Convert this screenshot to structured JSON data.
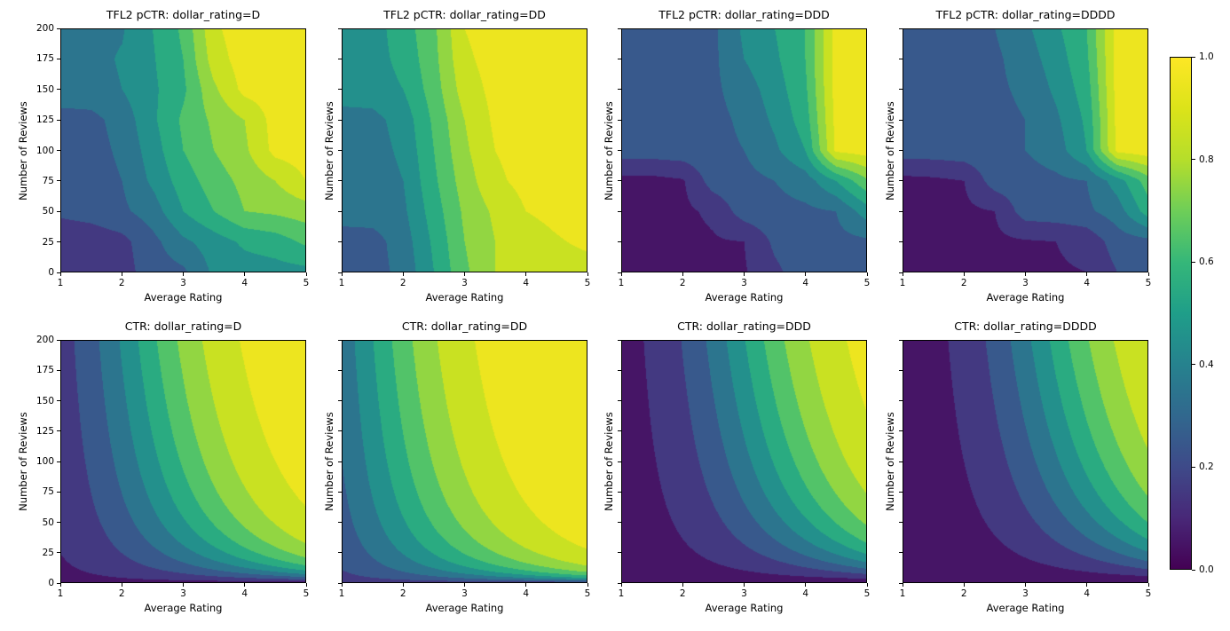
{
  "figure": {
    "background": "#ffffff",
    "description": "2x4 grid of filled contour plots comparing TFL2 lattice-model predicted CTR (top row) with true CTR (bottom row) for four dollar_rating categories, shared viridis colorbar 0-1"
  },
  "axes": {
    "x_label": "Average Rating",
    "y_label": "Number of Reviews",
    "x_ticks": [
      1,
      2,
      3,
      4,
      5
    ],
    "y_ticks": [
      0,
      25,
      50,
      75,
      100,
      125,
      150,
      175,
      200
    ],
    "x_range": [
      1,
      5
    ],
    "y_range": [
      0,
      200
    ],
    "grid": false
  },
  "colorbar": {
    "min": 0.0,
    "max": 1.0,
    "tick_labels": [
      "0.0",
      "0.2",
      "0.4",
      "0.6",
      "0.8",
      "1.0"
    ],
    "colormap": "viridis"
  },
  "colors": {
    "viridis_anchors": [
      "#440154",
      "#482878",
      "#3e4a89",
      "#31688e",
      "#26828e",
      "#1f9e89",
      "#35b779",
      "#6ece58",
      "#b5de2b",
      "#dce319",
      "#fde725"
    ],
    "spine": "#000000",
    "text": "#000000"
  },
  "chart_data": [
    {
      "type": "heatmap",
      "subtype": "filled-contour",
      "title": "TFL2 pCTR: dollar_rating=D",
      "row": 0,
      "col": 0,
      "x": [
        1,
        1.5,
        2,
        2.5,
        3,
        3.5,
        4,
        4.5,
        5
      ],
      "y": [
        0,
        25,
        50,
        75,
        100,
        125,
        150,
        175,
        200
      ],
      "levels": [
        0,
        0.1,
        0.2,
        0.3,
        0.4,
        0.5,
        0.6,
        0.7,
        0.8,
        0.9,
        1.0
      ],
      "z": [
        [
          0.13,
          0.13,
          0.16,
          0.25,
          0.28,
          0.42,
          0.45,
          0.46,
          0.47
        ],
        [
          0.13,
          0.14,
          0.17,
          0.27,
          0.38,
          0.45,
          0.52,
          0.55,
          0.62
        ],
        [
          0.22,
          0.24,
          0.28,
          0.35,
          0.5,
          0.6,
          0.7,
          0.72,
          0.75
        ],
        [
          0.24,
          0.25,
          0.3,
          0.42,
          0.55,
          0.65,
          0.73,
          0.8,
          0.9
        ],
        [
          0.25,
          0.26,
          0.32,
          0.45,
          0.6,
          0.7,
          0.78,
          0.93,
          0.95
        ],
        [
          0.26,
          0.27,
          0.34,
          0.48,
          0.62,
          0.72,
          0.8,
          0.94,
          0.96
        ],
        [
          0.36,
          0.36,
          0.4,
          0.48,
          0.58,
          0.78,
          0.93,
          0.95,
          0.96
        ],
        [
          0.37,
          0.37,
          0.41,
          0.49,
          0.6,
          0.85,
          0.95,
          0.96,
          0.97
        ],
        [
          0.38,
          0.38,
          0.39,
          0.5,
          0.62,
          0.88,
          0.96,
          0.97,
          0.98
        ]
      ]
    },
    {
      "type": "heatmap",
      "subtype": "filled-contour",
      "title": "TFL2 pCTR: dollar_rating=DD",
      "row": 0,
      "col": 1,
      "x": [
        1,
        1.5,
        2,
        2.5,
        3,
        3.5,
        4,
        4.5,
        5
      ],
      "y": [
        0,
        25,
        50,
        75,
        100,
        125,
        150,
        175,
        200
      ],
      "levels": [
        0,
        0.1,
        0.2,
        0.3,
        0.4,
        0.5,
        0.6,
        0.7,
        0.8,
        0.9,
        1.0
      ],
      "z": [
        [
          0.25,
          0.26,
          0.33,
          0.5,
          0.68,
          0.8,
          0.84,
          0.85,
          0.86
        ],
        [
          0.25,
          0.26,
          0.35,
          0.52,
          0.7,
          0.8,
          0.85,
          0.89,
          0.92
        ],
        [
          0.35,
          0.35,
          0.38,
          0.55,
          0.72,
          0.82,
          0.9,
          0.93,
          0.95
        ],
        [
          0.35,
          0.35,
          0.4,
          0.58,
          0.75,
          0.88,
          0.93,
          0.95,
          0.96
        ],
        [
          0.36,
          0.36,
          0.42,
          0.6,
          0.78,
          0.9,
          0.94,
          0.95,
          0.96
        ],
        [
          0.36,
          0.37,
          0.44,
          0.62,
          0.8,
          0.92,
          0.95,
          0.95,
          0.96
        ],
        [
          0.45,
          0.45,
          0.5,
          0.65,
          0.85,
          0.93,
          0.95,
          0.96,
          0.96
        ],
        [
          0.45,
          0.46,
          0.53,
          0.67,
          0.88,
          0.94,
          0.95,
          0.96,
          0.97
        ],
        [
          0.45,
          0.46,
          0.55,
          0.68,
          0.9,
          0.95,
          0.96,
          0.96,
          0.97
        ]
      ]
    },
    {
      "type": "heatmap",
      "subtype": "filled-contour",
      "title": "TFL2 pCTR: dollar_rating=DDD",
      "row": 0,
      "col": 2,
      "x": [
        1,
        1.5,
        2,
        2.5,
        3,
        3.5,
        4,
        4.5,
        5
      ],
      "y": [
        0,
        25,
        50,
        75,
        100,
        125,
        150,
        175,
        200
      ],
      "levels": [
        0,
        0.1,
        0.2,
        0.3,
        0.4,
        0.5,
        0.6,
        0.7,
        0.8,
        0.9,
        1.0
      ],
      "z": [
        [
          0.07,
          0.07,
          0.07,
          0.08,
          0.09,
          0.18,
          0.25,
          0.26,
          0.27
        ],
        [
          0.07,
          0.07,
          0.07,
          0.09,
          0.1,
          0.22,
          0.26,
          0.27,
          0.28
        ],
        [
          0.07,
          0.07,
          0.08,
          0.12,
          0.25,
          0.27,
          0.28,
          0.3,
          0.45
        ],
        [
          0.07,
          0.07,
          0.09,
          0.25,
          0.27,
          0.3,
          0.35,
          0.5,
          0.68
        ],
        [
          0.25,
          0.25,
          0.26,
          0.27,
          0.3,
          0.38,
          0.5,
          0.92,
          0.95
        ],
        [
          0.25,
          0.25,
          0.26,
          0.27,
          0.32,
          0.42,
          0.55,
          0.93,
          0.96
        ],
        [
          0.25,
          0.25,
          0.26,
          0.28,
          0.35,
          0.45,
          0.58,
          0.94,
          0.96
        ],
        [
          0.25,
          0.25,
          0.26,
          0.28,
          0.4,
          0.48,
          0.6,
          0.94,
          0.96
        ],
        [
          0.25,
          0.25,
          0.26,
          0.28,
          0.42,
          0.5,
          0.6,
          0.94,
          0.96
        ]
      ]
    },
    {
      "type": "heatmap",
      "subtype": "filled-contour",
      "title": "TFL2 pCTR: dollar_rating=DDDD",
      "row": 0,
      "col": 3,
      "x": [
        1,
        1.5,
        2,
        2.5,
        3,
        3.5,
        4,
        4.5,
        5
      ],
      "y": [
        0,
        25,
        50,
        75,
        100,
        125,
        150,
        175,
        200
      ],
      "levels": [
        0,
        0.1,
        0.2,
        0.3,
        0.4,
        0.5,
        0.6,
        0.7,
        0.8,
        0.9,
        1.0
      ],
      "z": [
        [
          0.06,
          0.06,
          0.06,
          0.07,
          0.08,
          0.09,
          0.1,
          0.2,
          0.26
        ],
        [
          0.06,
          0.06,
          0.07,
          0.08,
          0.09,
          0.1,
          0.13,
          0.25,
          0.27
        ],
        [
          0.06,
          0.07,
          0.08,
          0.1,
          0.25,
          0.26,
          0.28,
          0.35,
          0.55
        ],
        [
          0.07,
          0.08,
          0.1,
          0.25,
          0.26,
          0.28,
          0.3,
          0.45,
          0.65
        ],
        [
          0.25,
          0.25,
          0.26,
          0.27,
          0.3,
          0.35,
          0.5,
          0.93,
          0.96
        ],
        [
          0.25,
          0.25,
          0.26,
          0.27,
          0.3,
          0.38,
          0.52,
          0.93,
          0.96
        ],
        [
          0.25,
          0.25,
          0.26,
          0.28,
          0.32,
          0.42,
          0.55,
          0.94,
          0.96
        ],
        [
          0.25,
          0.26,
          0.26,
          0.28,
          0.35,
          0.45,
          0.58,
          0.94,
          0.96
        ],
        [
          0.25,
          0.26,
          0.27,
          0.3,
          0.38,
          0.48,
          0.6,
          0.94,
          0.96
        ]
      ]
    },
    {
      "type": "heatmap",
      "subtype": "filled-contour",
      "title": "CTR: dollar_rating=D",
      "row": 1,
      "col": 0,
      "levels": [
        0,
        0.1,
        0.2,
        0.3,
        0.4,
        0.5,
        0.6,
        0.7,
        0.8,
        0.9,
        1.0
      ],
      "z_formula": {
        "kind": "sigmoid_ctr",
        "expression": "1/(1+exp(baseline - avg_rating*log(1+num_reviews)/4))",
        "baseline": 3
      }
    },
    {
      "type": "heatmap",
      "subtype": "filled-contour",
      "title": "CTR: dollar_rating=DD",
      "row": 1,
      "col": 1,
      "levels": [
        0,
        0.1,
        0.2,
        0.3,
        0.4,
        0.5,
        0.6,
        0.7,
        0.8,
        0.9,
        1.0
      ],
      "z_formula": {
        "kind": "sigmoid_ctr",
        "expression": "1/(1+exp(baseline - avg_rating*log(1+num_reviews)/4))",
        "baseline": 2
      }
    },
    {
      "type": "heatmap",
      "subtype": "filled-contour",
      "title": "CTR: dollar_rating=DDD",
      "row": 1,
      "col": 2,
      "levels": [
        0,
        0.1,
        0.2,
        0.3,
        0.4,
        0.5,
        0.6,
        0.7,
        0.8,
        0.9,
        1.0
      ],
      "z_formula": {
        "kind": "sigmoid_ctr",
        "expression": "1/(1+exp(baseline - avg_rating*log(1+num_reviews)/4))",
        "baseline": 4
      }
    },
    {
      "type": "heatmap",
      "subtype": "filled-contour",
      "title": "CTR: dollar_rating=DDDD",
      "row": 1,
      "col": 3,
      "levels": [
        0,
        0.1,
        0.2,
        0.3,
        0.4,
        0.5,
        0.6,
        0.7,
        0.8,
        0.9,
        1.0
      ],
      "z_formula": {
        "kind": "sigmoid_ctr",
        "expression": "1/(1+exp(baseline - avg_rating*log(1+num_reviews)/4))",
        "baseline": 4.5
      }
    }
  ]
}
